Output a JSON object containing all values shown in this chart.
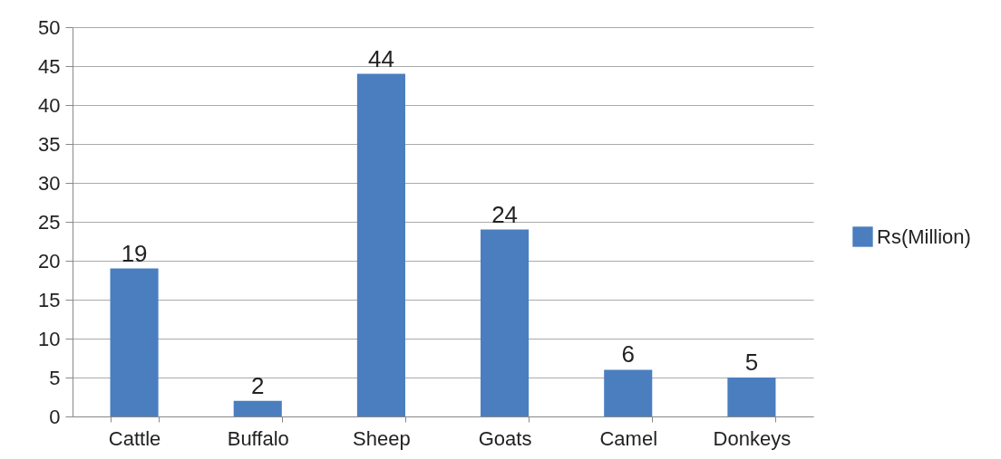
{
  "chart_data": {
    "type": "bar",
    "categories": [
      "Cattle",
      "Buffalo",
      "Sheep",
      "Goats",
      "Camel",
      "Donkeys"
    ],
    "series": [
      {
        "name": "Rs(Million)",
        "color": "#4a7ebf",
        "values": [
          19,
          2,
          44,
          24,
          6,
          5
        ]
      }
    ],
    "ylim": [
      0,
      50
    ],
    "yticks": [
      0,
      5,
      10,
      15,
      20,
      25,
      30,
      35,
      40,
      45,
      50
    ],
    "grid": "y",
    "legend": "right",
    "data_labels": true
  }
}
